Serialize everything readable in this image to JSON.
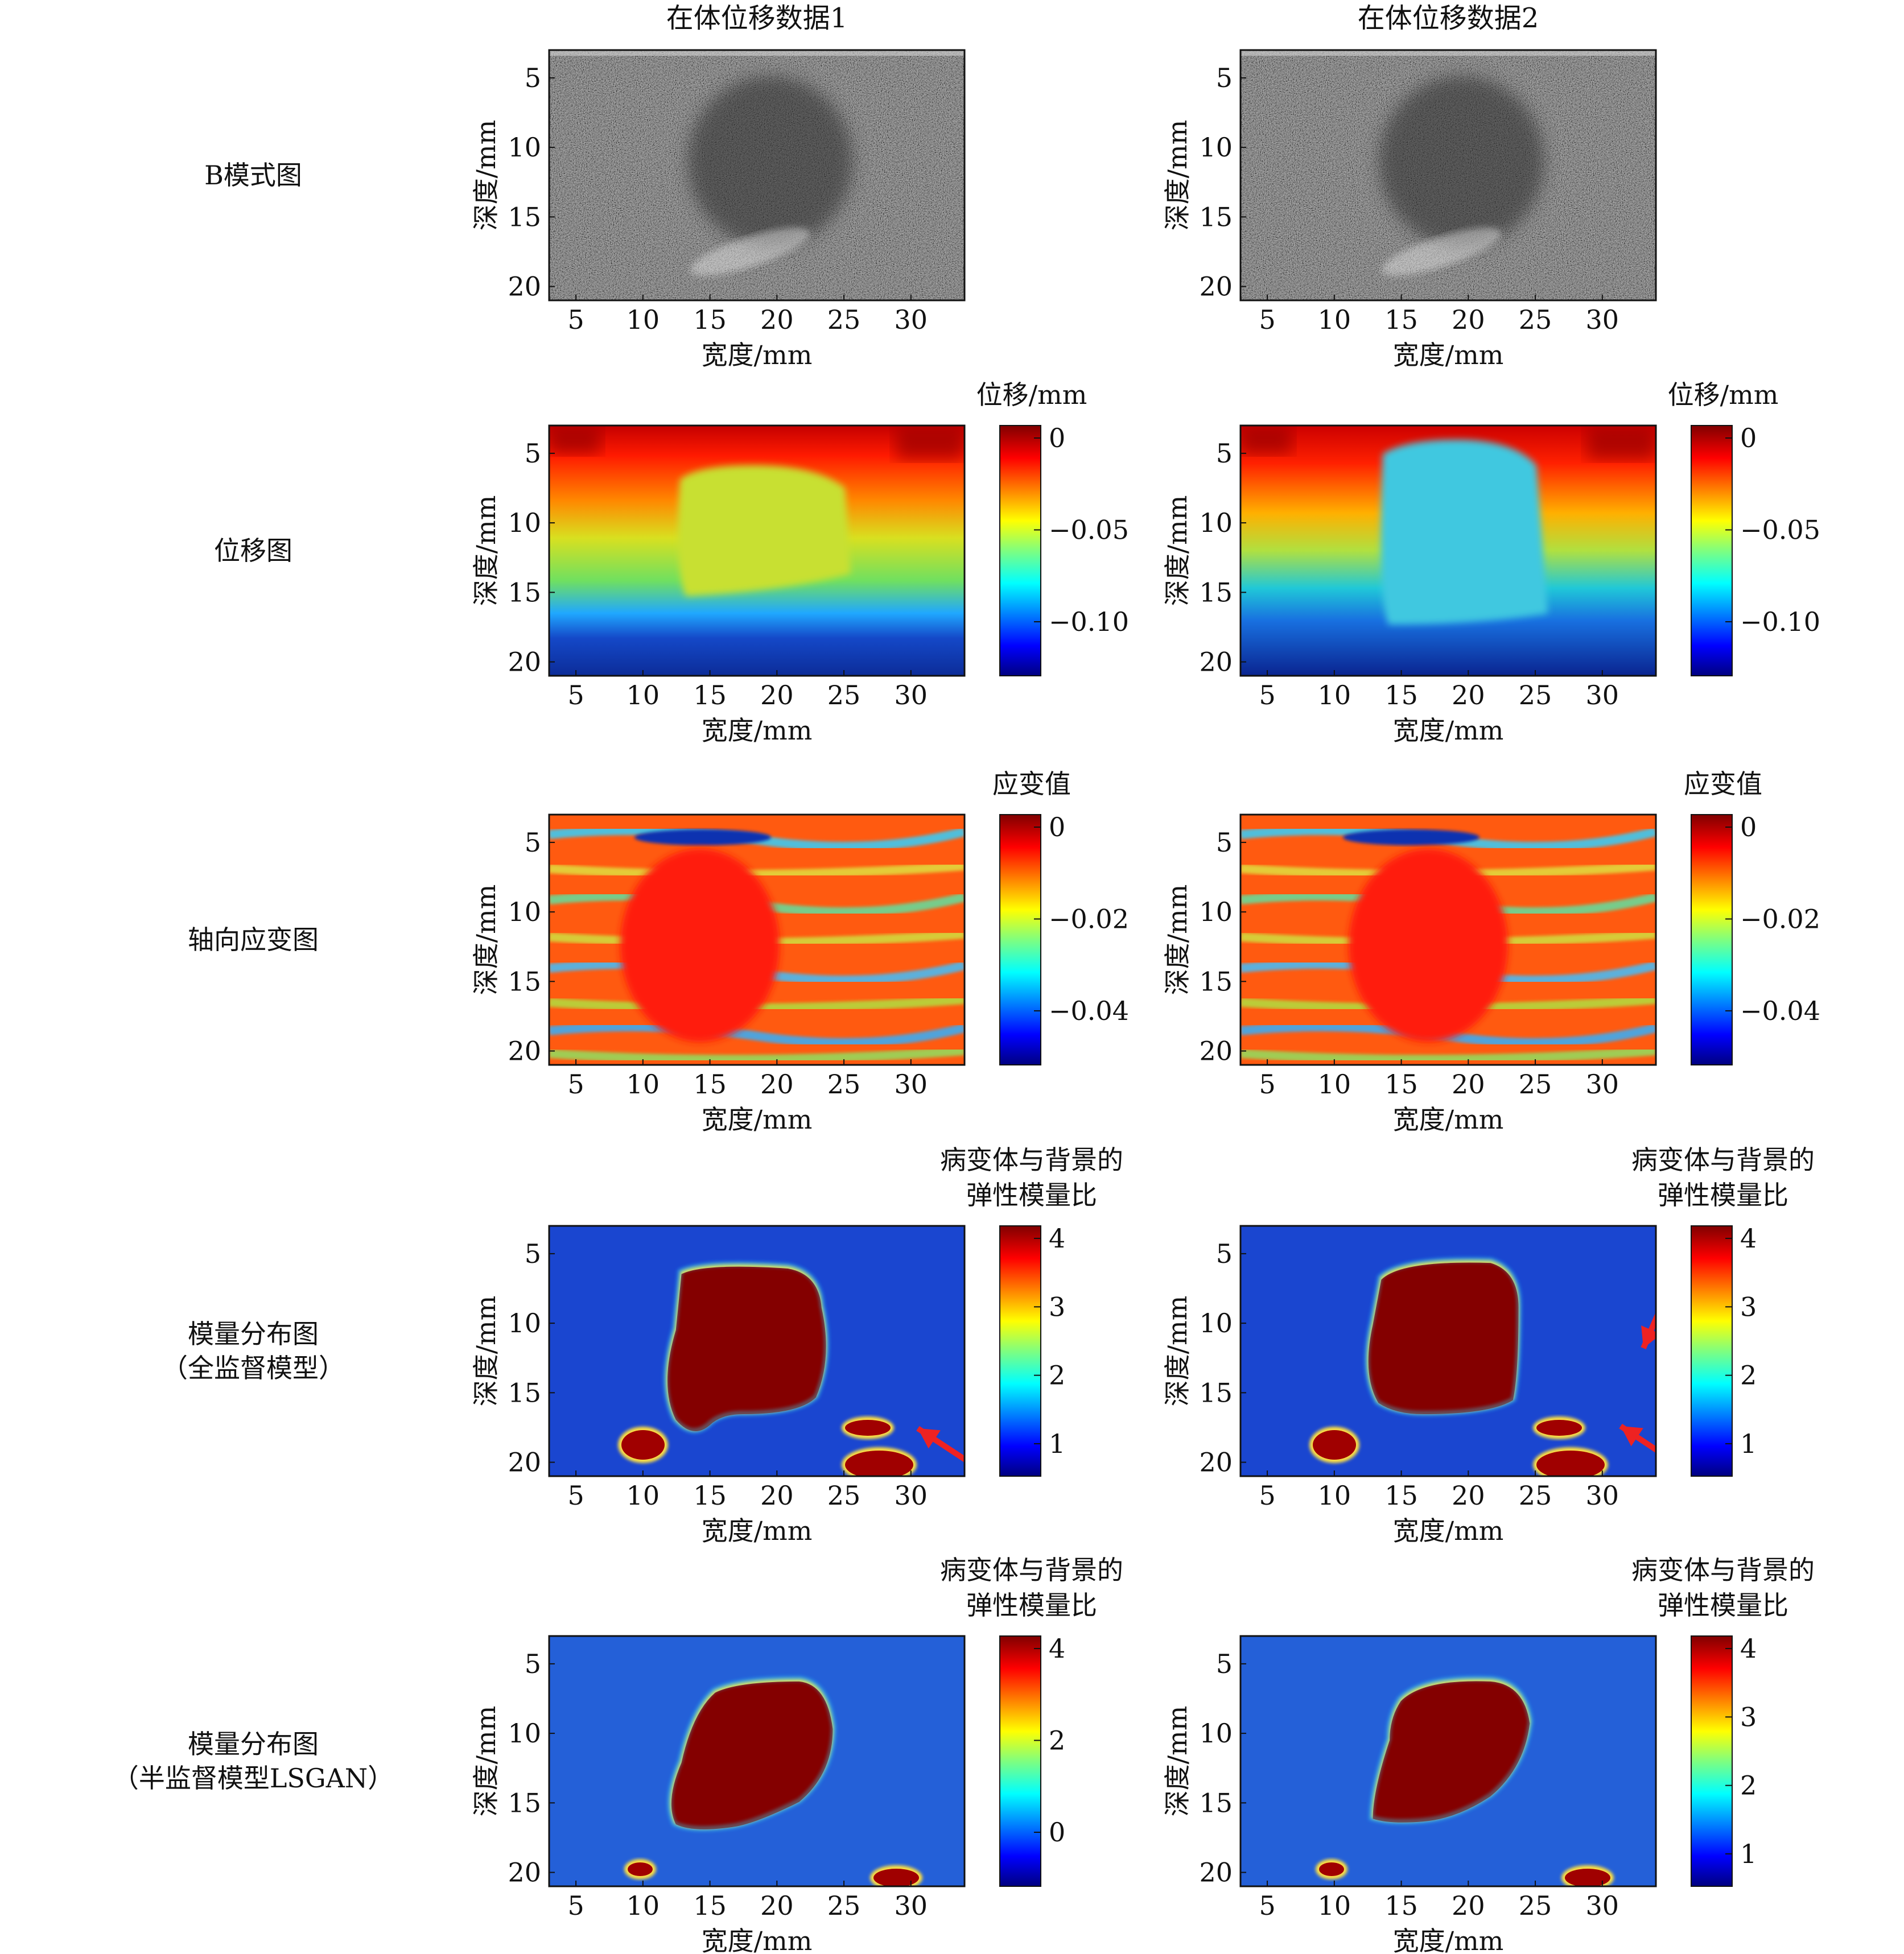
{
  "columns": [
    "在体位移数据1",
    "在体位移数据2"
  ],
  "rows": [
    {
      "id": "bmode",
      "label": [
        "B模式图"
      ],
      "cb_title": [],
      "kind": "bmode",
      "cb_ticks": [
        [],
        []
      ]
    },
    {
      "id": "disp",
      "label": [
        "位移图"
      ],
      "cb_title": [
        "位移/mm"
      ],
      "kind": "disp",
      "cb_ticks": [
        [
          "0",
          "−0.05",
          "−0.10"
        ],
        [
          "0",
          "−0.05",
          "−0.10"
        ]
      ]
    },
    {
      "id": "strain",
      "label": [
        "轴向应变图"
      ],
      "cb_title": [
        "应变值"
      ],
      "kind": "strain",
      "cb_ticks": [
        [
          "0",
          "−0.02",
          "−0.04"
        ],
        [
          "0",
          "−0.02",
          "−0.04"
        ]
      ]
    },
    {
      "id": "mod_full",
      "label": [
        "模量分布图",
        "（全监督模型）"
      ],
      "cb_title": [
        "病变体与背景的",
        "弹性模量比"
      ],
      "kind": "modulus",
      "cb_ticks": [
        [
          "4",
          "3",
          "2",
          "1"
        ],
        [
          "4",
          "3",
          "2",
          "1"
        ]
      ]
    },
    {
      "id": "mod_lsgan",
      "label": [
        "模量分布图",
        "（半监督模型LSGAN）"
      ],
      "cb_title": [
        "病变体与背景的",
        "弹性模量比"
      ],
      "kind": "modulus",
      "cb_ticks": [
        [
          "4",
          "2",
          "0"
        ],
        [
          "4",
          "3",
          "2",
          "1"
        ]
      ]
    }
  ],
  "axes": {
    "xlabel": "宽度/mm",
    "ylabel": "深度/mm",
    "xticks": [
      "5",
      "10",
      "15",
      "20",
      "25",
      "30"
    ],
    "yticks": [
      "5",
      "10",
      "15",
      "20"
    ]
  },
  "colors": {
    "jet": [
      "#000080",
      "#0000ff",
      "#00ffff",
      "#ffff00",
      "#ff0000",
      "#800000"
    ],
    "arrow": "#ee2222"
  }
}
